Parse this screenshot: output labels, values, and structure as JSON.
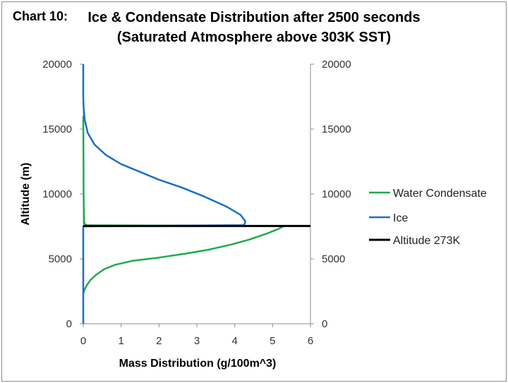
{
  "header": {
    "chart_label": "Chart 10:",
    "title_line1": "Ice & Condensate Distribution after 2500 seconds",
    "title_line2": "(Saturated Atmosphere above 303K SST)"
  },
  "chart_data": {
    "type": "line",
    "title": "Ice & Condensate Distribution after 2500 seconds (Saturated Atmosphere above 303K SST)",
    "xlabel": "Mass Distribution (g/100m^3)",
    "ylabel": "Altitude (m)",
    "xlim": [
      0,
      6
    ],
    "ylim": [
      0,
      20000
    ],
    "xticks": [
      0,
      1,
      2,
      3,
      4,
      5,
      6
    ],
    "yticks": [
      0,
      5000,
      10000,
      15000,
      20000
    ],
    "ytick_labels": [
      "0",
      "5000",
      "10000",
      "15000",
      "20000"
    ],
    "secondary_yticks": [
      0,
      5000,
      10000,
      15000,
      20000
    ],
    "secondary_ytick_labels": [
      "0",
      "5000",
      "10000",
      "15000",
      "20000"
    ],
    "grid": false,
    "legend_position": "right",
    "series": [
      {
        "name": "Water Condensate",
        "color": "#1faa4e",
        "points": [
          [
            0,
            2300
          ],
          [
            0.03,
            2600
          ],
          [
            0.1,
            3000
          ],
          [
            0.2,
            3400
          ],
          [
            0.35,
            3800
          ],
          [
            0.55,
            4200
          ],
          [
            0.85,
            4550
          ],
          [
            1.3,
            4850
          ],
          [
            2.0,
            5100
          ],
          [
            2.7,
            5400
          ],
          [
            3.3,
            5700
          ],
          [
            3.9,
            6100
          ],
          [
            4.4,
            6500
          ],
          [
            4.85,
            6950
          ],
          [
            5.15,
            7300
          ],
          [
            5.3,
            7530
          ],
          [
            0.1,
            7580
          ],
          [
            0.03,
            7700
          ],
          [
            0.02,
            8000
          ],
          [
            0.01,
            10000
          ],
          [
            0.005,
            13000
          ],
          [
            0,
            16000
          ]
        ]
      },
      {
        "name": "Ice",
        "color": "#1c6fc1",
        "points": [
          [
            0,
            0
          ],
          [
            0,
            7500
          ],
          [
            4.25,
            7600
          ],
          [
            4.28,
            7900
          ],
          [
            4.15,
            8400
          ],
          [
            3.8,
            9000
          ],
          [
            3.2,
            9800
          ],
          [
            2.6,
            10500
          ],
          [
            2.0,
            11100
          ],
          [
            1.5,
            11700
          ],
          [
            1.0,
            12300
          ],
          [
            0.6,
            13000
          ],
          [
            0.3,
            13800
          ],
          [
            0.12,
            14700
          ],
          [
            0.04,
            15700
          ],
          [
            0.01,
            16700
          ],
          [
            0,
            17500
          ],
          [
            0,
            20000
          ]
        ]
      },
      {
        "name": "Altitude 273K",
        "color": "#000000",
        "points": [
          [
            0,
            7530
          ],
          [
            6,
            7530
          ]
        ]
      }
    ]
  }
}
